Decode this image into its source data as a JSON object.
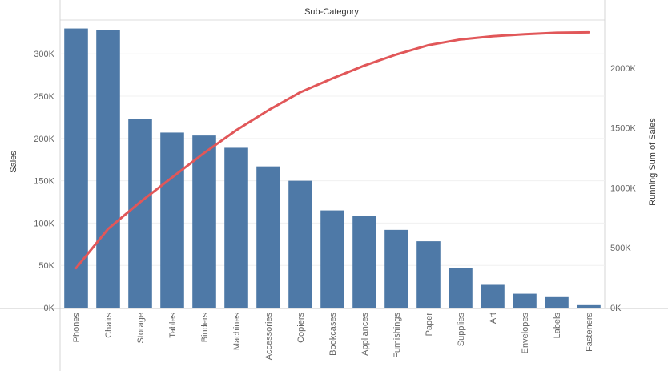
{
  "chart_data": {
    "type": "bar",
    "header": "Sub-Category",
    "categories": [
      "Phones",
      "Chairs",
      "Storage",
      "Tables",
      "Binders",
      "Machines",
      "Accessories",
      "Copiers",
      "Bookcases",
      "Appliances",
      "Furnishings",
      "Paper",
      "Supplies",
      "Art",
      "Envelopes",
      "Labels",
      "Fasteners"
    ],
    "series": [
      {
        "name": "Sales",
        "type": "bar",
        "axis": "left",
        "color": "#4e79a7",
        "values": [
          330000,
          328000,
          223000,
          207000,
          203500,
          189000,
          167000,
          150000,
          115000,
          108000,
          92000,
          78500,
          47000,
          27000,
          16500,
          12500,
          3000
        ]
      },
      {
        "name": "Running Sum of Sales",
        "type": "line",
        "axis": "right",
        "color": "#e15759",
        "values": [
          330000,
          658000,
          881000,
          1088000,
          1291500,
          1480500,
          1647500,
          1797500,
          1912500,
          2020500,
          2112500,
          2191000,
          2238000,
          2265000,
          2281500,
          2294000,
          2297000
        ]
      }
    ],
    "y_left": {
      "label": "Sales",
      "ylim": [
        0,
        340000
      ],
      "ticks": [
        0,
        50000,
        100000,
        150000,
        200000,
        250000,
        300000
      ],
      "tick_labels": [
        "0K",
        "50K",
        "100K",
        "150K",
        "200K",
        "250K",
        "300K"
      ]
    },
    "y_right": {
      "label": "Running Sum of Sales",
      "ylim": [
        0,
        2400000
      ],
      "ticks": [
        0,
        500000,
        1000000,
        1500000,
        2000000
      ],
      "tick_labels": [
        "0K",
        "500K",
        "1000K",
        "1500K",
        "2000K"
      ]
    },
    "grid": true,
    "gridline_color": "#f0f0f0"
  }
}
